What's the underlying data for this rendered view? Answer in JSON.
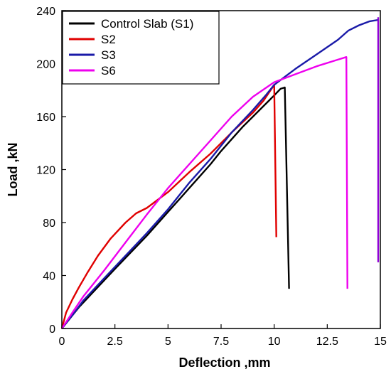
{
  "chart_data": {
    "type": "line",
    "xlabel": "Deflection ,mm",
    "ylabel": "Load ,kN",
    "xlim": [
      0,
      15
    ],
    "ylim": [
      0,
      240
    ],
    "x_ticks": [
      "0",
      "2.5",
      "5",
      "7.5",
      "10",
      "12.5",
      "15"
    ],
    "y_ticks": [
      "0",
      "40",
      "80",
      "120",
      "160",
      "200",
      "240"
    ],
    "grid": false,
    "legend_position": "top-left",
    "series": [
      {
        "name": "Control Slab (S1)",
        "color": "#000000",
        "points": [
          [
            0,
            0
          ],
          [
            0.3,
            6
          ],
          [
            0.8,
            16
          ],
          [
            1.5,
            28
          ],
          [
            2.5,
            45
          ],
          [
            4,
            70
          ],
          [
            5,
            88
          ],
          [
            6,
            106
          ],
          [
            7,
            124
          ],
          [
            7.5,
            134
          ],
          [
            8.5,
            152
          ],
          [
            9.5,
            168
          ],
          [
            10,
            176
          ],
          [
            10.3,
            181
          ],
          [
            10.5,
            182
          ],
          [
            10.7,
            30
          ]
        ]
      },
      {
        "name": "S2",
        "color": "#e00000",
        "points": [
          [
            0,
            0
          ],
          [
            0.2,
            12
          ],
          [
            0.5,
            22
          ],
          [
            0.8,
            31
          ],
          [
            1.2,
            42
          ],
          [
            1.7,
            55
          ],
          [
            2.3,
            68
          ],
          [
            3,
            80
          ],
          [
            3.5,
            87
          ],
          [
            4,
            91
          ],
          [
            5,
            103
          ],
          [
            6,
            118
          ],
          [
            7,
            132
          ],
          [
            8,
            148
          ],
          [
            9,
            163
          ],
          [
            9.5,
            172
          ],
          [
            10,
            184
          ],
          [
            10.1,
            69
          ]
        ]
      },
      {
        "name": "S3",
        "color": "#1a1aa8",
        "points": [
          [
            0,
            0
          ],
          [
            0.5,
            10
          ],
          [
            1,
            21
          ],
          [
            2,
            38
          ],
          [
            3,
            55
          ],
          [
            4,
            72
          ],
          [
            5,
            90
          ],
          [
            6,
            110
          ],
          [
            7,
            128
          ],
          [
            8,
            148
          ],
          [
            9,
            165
          ],
          [
            9.6,
            176
          ],
          [
            10,
            184
          ],
          [
            10.5,
            190
          ],
          [
            11,
            196
          ],
          [
            12,
            207
          ],
          [
            13,
            218
          ],
          [
            13.5,
            225
          ],
          [
            14,
            229
          ],
          [
            14.5,
            232
          ],
          [
            14.9,
            233
          ]
        ]
      },
      {
        "name": "S6",
        "color": "#ee00ee",
        "points": [
          [
            0,
            0
          ],
          [
            0.5,
            12
          ],
          [
            1,
            24
          ],
          [
            2,
            44
          ],
          [
            3,
            65
          ],
          [
            4,
            86
          ],
          [
            5,
            106
          ],
          [
            6,
            124
          ],
          [
            7,
            142
          ],
          [
            8,
            160
          ],
          [
            9,
            175
          ],
          [
            10,
            186
          ],
          [
            11,
            192
          ],
          [
            12,
            198
          ],
          [
            13,
            203
          ],
          [
            13.4,
            205
          ],
          [
            13.45,
            30
          ]
        ]
      }
    ],
    "extra_lines": [
      {
        "color": "#9000d8",
        "points": [
          [
            14.9,
            235
          ],
          [
            14.9,
            50
          ]
        ]
      }
    ]
  }
}
